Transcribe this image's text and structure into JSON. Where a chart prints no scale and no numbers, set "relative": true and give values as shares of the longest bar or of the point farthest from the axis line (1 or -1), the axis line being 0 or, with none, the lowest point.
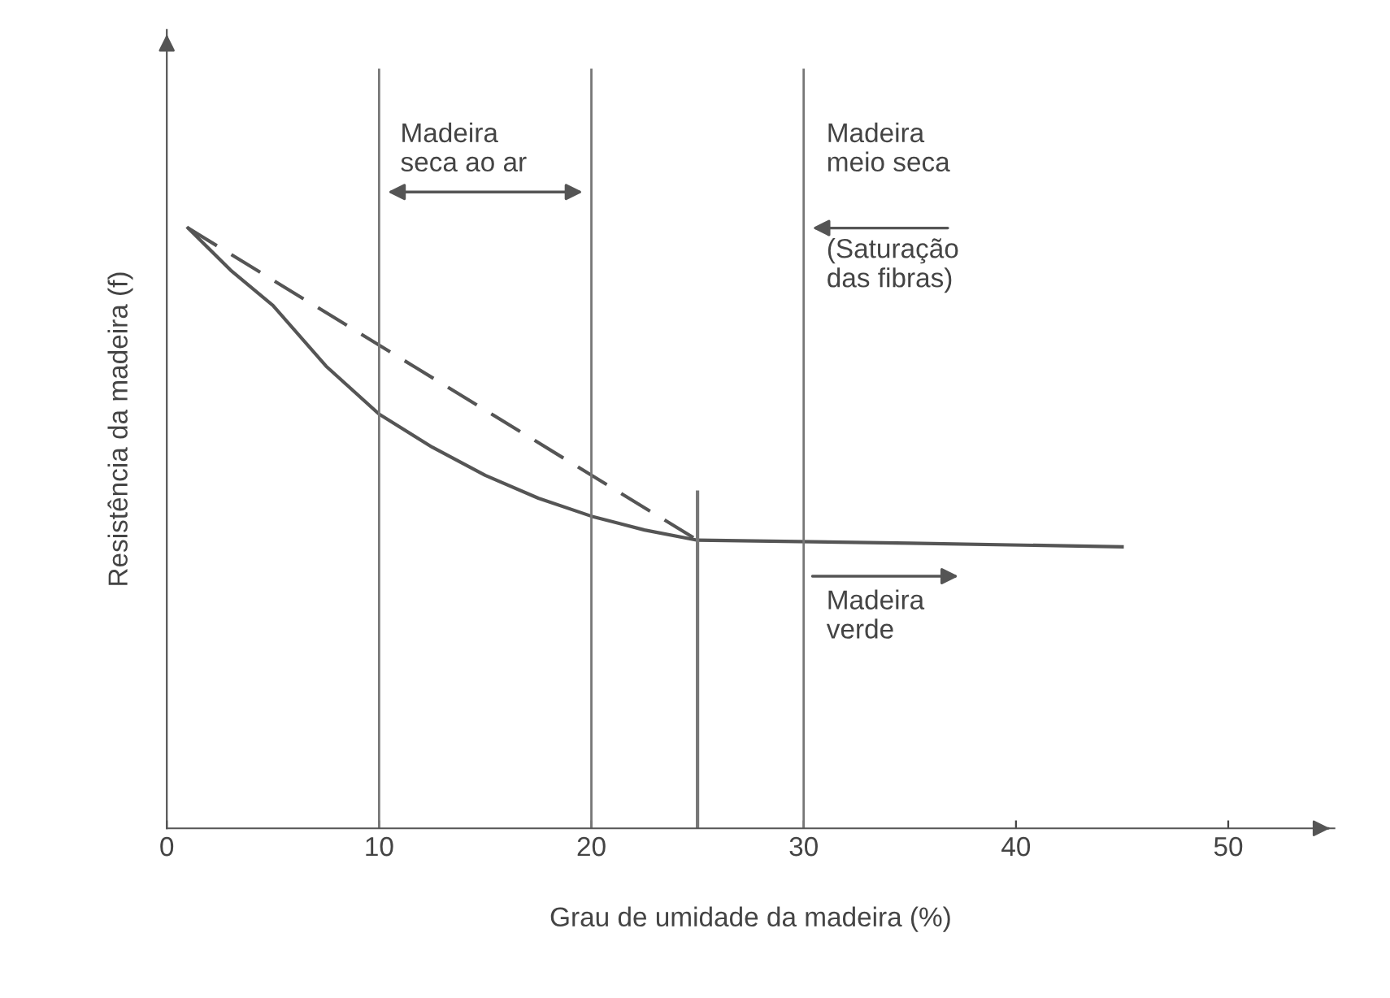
{
  "chart_data": {
    "type": "line",
    "relative": true,
    "xlabel": "Grau de umidade da madeira (%)",
    "ylabel": "Resistência da madeira (f)",
    "xlim": [
      0,
      55
    ],
    "xticks": [
      0,
      10,
      20,
      30,
      40,
      50
    ],
    "grid": false,
    "marker": "none",
    "series": [
      {
        "color": "#555555",
        "line_style": "solid",
        "x": [
          1,
          3,
          5,
          7.5,
          10,
          12.5,
          15,
          17.5,
          20,
          22.5,
          25,
          35,
          45
        ],
        "values": [
          1.0,
          0.93,
          0.871,
          0.77,
          0.69,
          0.635,
          0.588,
          0.55,
          0.52,
          0.497,
          0.48,
          0.475,
          0.469
        ]
      },
      {
        "color": "#555555",
        "line_style": "dashed",
        "x": [
          1,
          25
        ],
        "values": [
          1.0,
          0.48
        ]
      },
      {
        "color": "#777777",
        "line_style": "solid",
        "x": [
          25,
          25
        ],
        "values": [
          0,
          0.56
        ]
      }
    ],
    "ref_lines": [
      {
        "axis": "x",
        "value": 10,
        "color": "#777777"
      },
      {
        "axis": "x",
        "value": 20,
        "color": "#777777"
      },
      {
        "axis": "x",
        "value": 30,
        "color": "#777777"
      }
    ],
    "annotations": [
      "Madeira\nseca ao ar",
      "Madeira\nmeio seca",
      "(Saturação\ndas fibras)",
      "Madeira\nverde"
    ]
  }
}
